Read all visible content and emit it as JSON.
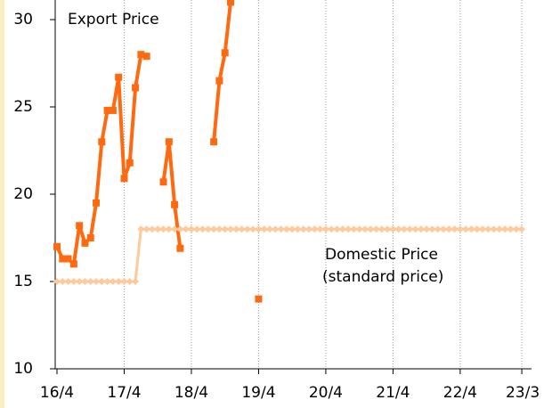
{
  "chart_data": {
    "type": "line",
    "categories": [
      "16/4",
      null,
      null,
      null,
      null,
      null,
      null,
      null,
      null,
      null,
      null,
      null,
      "17/4",
      null,
      null,
      null,
      null,
      null,
      null,
      null,
      null,
      null,
      null,
      null,
      "18/4",
      null,
      null,
      null,
      null,
      null,
      null,
      null,
      null,
      null,
      null,
      null,
      "19/4",
      null,
      null,
      null,
      null,
      null,
      null,
      null,
      null,
      null,
      null,
      null,
      "20/4",
      null,
      null,
      null,
      null,
      null,
      null,
      null,
      null,
      null,
      null,
      null,
      "21/4",
      null,
      null,
      null,
      null,
      null,
      null,
      null,
      null,
      null,
      null,
      null,
      "22/4",
      null,
      null,
      null,
      null,
      null,
      null,
      null,
      null,
      null,
      null,
      "23/3"
    ],
    "series": [
      {
        "name": "Export Price",
        "color": "#ff6a10",
        "marker": "square",
        "values": [
          17.0,
          16.3,
          16.3,
          16.0,
          18.2,
          17.2,
          17.5,
          19.5,
          23.0,
          24.8,
          24.8,
          26.7,
          20.9,
          21.8,
          26.1,
          28.0,
          27.9,
          null,
          null,
          20.7,
          23.0,
          19.4,
          16.9,
          null,
          null,
          null,
          null,
          null,
          23.0,
          26.5,
          28.1,
          31.0,
          null,
          null,
          null,
          null,
          14.0,
          null,
          null,
          null,
          null,
          null,
          null,
          null,
          null,
          null,
          null,
          null,
          null,
          null,
          null,
          null,
          null,
          null,
          null,
          null,
          null,
          null,
          null,
          null,
          null,
          null,
          null,
          null,
          null,
          null,
          null,
          null,
          null,
          null,
          null,
          null,
          null,
          null,
          null,
          null,
          null,
          null,
          null,
          null,
          null,
          null,
          null,
          null
        ]
      },
      {
        "name": "Domestic Price",
        "color": "#ffc999",
        "marker": "diamond",
        "values": [
          15,
          15,
          15,
          15,
          15,
          15,
          15,
          15,
          15,
          15,
          15,
          15,
          15,
          15,
          15,
          18,
          18,
          18,
          18,
          18,
          18,
          18,
          18,
          18,
          18,
          18,
          18,
          18,
          18,
          18,
          18,
          18,
          18,
          18,
          18,
          18,
          18,
          18,
          18,
          18,
          18,
          18,
          18,
          18,
          18,
          18,
          18,
          18,
          18,
          18,
          18,
          18,
          18,
          18,
          18,
          18,
          18,
          18,
          18,
          18,
          18,
          18,
          18,
          18,
          18,
          18,
          18,
          18,
          18,
          18,
          18,
          18,
          18,
          18,
          18,
          18,
          18,
          18,
          18,
          18,
          18,
          18,
          18,
          18
        ]
      }
    ],
    "annotations": [
      "Export Price",
      "Domestic Price",
      "(standard price)"
    ],
    "ylim": [
      10,
      31
    ],
    "yticks": [
      10,
      15,
      20,
      25,
      30
    ],
    "grid": true
  }
}
